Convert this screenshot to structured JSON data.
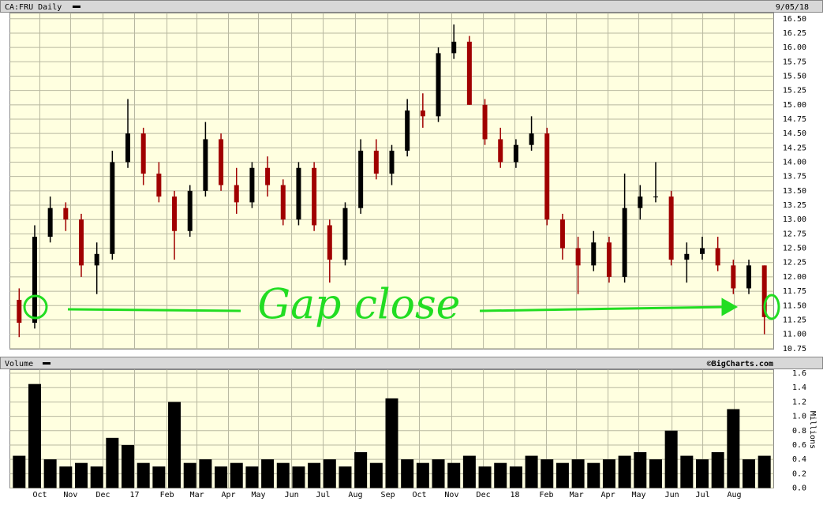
{
  "chart_data": [
    {
      "type": "candlestick",
      "title": "CA:FRU Daily",
      "date": "9/05/18",
      "annotation": "Gap close",
      "up_color": "#000000",
      "down_color": "#a00000",
      "xlim": [
        -0.6,
        48.6
      ],
      "xticks": [
        {
          "value": 1.33,
          "label": "Oct"
        },
        {
          "value": 3.31,
          "label": "Nov"
        },
        {
          "value": 5.4,
          "label": "Dec"
        },
        {
          "value": 7.43,
          "label": "17"
        },
        {
          "value": 9.52,
          "label": "Feb"
        },
        {
          "value": 11.45,
          "label": "Mar"
        },
        {
          "value": 13.48,
          "label": "Apr"
        },
        {
          "value": 15.41,
          "label": "May"
        },
        {
          "value": 17.55,
          "label": "Jun"
        },
        {
          "value": 19.58,
          "label": "Jul"
        },
        {
          "value": 21.66,
          "label": "Aug"
        },
        {
          "value": 23.75,
          "label": "Sep"
        },
        {
          "value": 25.78,
          "label": "Oct"
        },
        {
          "value": 27.86,
          "label": "Nov"
        },
        {
          "value": 29.9,
          "label": "Dec"
        },
        {
          "value": 31.93,
          "label": "18"
        },
        {
          "value": 33.96,
          "label": "Feb"
        },
        {
          "value": 35.9,
          "label": "Mar"
        },
        {
          "value": 37.93,
          "label": "Apr"
        },
        {
          "value": 39.91,
          "label": "May"
        },
        {
          "value": 42.05,
          "label": "Jun"
        },
        {
          "value": 44.03,
          "label": "Jul"
        },
        {
          "value": 46.06,
          "label": "Aug"
        }
      ],
      "ylim": [
        10.74,
        16.6
      ],
      "yticks": [
        {
          "value": 10.75,
          "label": "10.75"
        },
        {
          "value": 11,
          "label": "11.00"
        },
        {
          "value": 11.25,
          "label": "11.25"
        },
        {
          "value": 11.5,
          "label": "11.50"
        },
        {
          "value": 11.75,
          "label": "11.75"
        },
        {
          "value": 12,
          "label": "12.00"
        },
        {
          "value": 12.25,
          "label": "12.25"
        },
        {
          "value": 12.5,
          "label": "12.50"
        },
        {
          "value": 12.75,
          "label": "12.75"
        },
        {
          "value": 13,
          "label": "13.00"
        },
        {
          "value": 13.25,
          "label": "13.25"
        },
        {
          "value": 13.5,
          "label": "13.50"
        },
        {
          "value": 13.75,
          "label": "13.75"
        },
        {
          "value": 14,
          "label": "14.00"
        },
        {
          "value": 14.25,
          "label": "14.25"
        },
        {
          "value": 14.5,
          "label": "14.50"
        },
        {
          "value": 14.75,
          "label": "14.75"
        },
        {
          "value": 15,
          "label": "15.00"
        },
        {
          "value": 15.25,
          "label": "15.25"
        },
        {
          "value": 15.5,
          "label": "15.50"
        },
        {
          "value": 15.75,
          "label": "15.75"
        },
        {
          "value": 16,
          "label": "16.00"
        },
        {
          "value": 16.25,
          "label": "16.25"
        },
        {
          "value": 16.5,
          "label": "16.50"
        }
      ],
      "grid": true,
      "open": [
        11.6,
        11.2,
        12.7,
        13.2,
        13.0,
        12.2,
        12.4,
        14.0,
        14.5,
        13.8,
        13.4,
        12.8,
        13.5,
        14.4,
        13.6,
        13.3,
        13.9,
        13.6,
        13.0,
        13.9,
        12.9,
        12.3,
        13.2,
        14.2,
        13.8,
        14.2,
        14.9,
        14.8,
        15.9,
        16.1,
        15.0,
        14.4,
        14.0,
        14.3,
        14.5,
        13.0,
        12.5,
        12.2,
        12.6,
        12.0,
        13.2,
        13.4,
        13.4,
        12.3,
        12.4,
        12.5,
        12.2,
        11.8,
        12.2
      ],
      "high": [
        11.8,
        12.9,
        13.4,
        13.3,
        13.1,
        12.6,
        14.2,
        15.1,
        14.6,
        14.0,
        13.5,
        13.6,
        14.7,
        14.5,
        13.9,
        14.0,
        14.1,
        13.7,
        14.0,
        14.0,
        13.0,
        13.3,
        14.4,
        14.4,
        14.3,
        15.1,
        15.2,
        16.0,
        16.4,
        16.2,
        15.1,
        14.6,
        14.4,
        14.8,
        14.6,
        13.1,
        12.7,
        12.8,
        12.7,
        13.8,
        13.6,
        14.0,
        13.5,
        12.6,
        12.7,
        12.7,
        12.3,
        12.3,
        12.2
      ],
      "low": [
        10.95,
        11.1,
        12.6,
        12.8,
        12.0,
        11.7,
        12.3,
        13.9,
        13.6,
        13.3,
        12.3,
        12.7,
        13.4,
        13.5,
        13.1,
        13.2,
        13.4,
        12.9,
        12.9,
        12.8,
        11.9,
        12.2,
        13.1,
        13.7,
        13.6,
        14.1,
        14.6,
        14.7,
        15.8,
        15.0,
        14.3,
        13.9,
        13.9,
        14.2,
        12.9,
        12.3,
        11.7,
        12.1,
        11.9,
        11.9,
        13.0,
        13.3,
        12.2,
        11.9,
        12.3,
        12.1,
        11.7,
        11.7,
        11.0
      ],
      "close": [
        11.2,
        12.7,
        13.2,
        13.0,
        12.2,
        12.4,
        14.0,
        14.5,
        13.8,
        13.4,
        12.8,
        13.5,
        14.4,
        13.6,
        13.3,
        13.9,
        13.6,
        13.0,
        13.9,
        12.9,
        12.3,
        13.2,
        14.2,
        13.8,
        14.2,
        14.9,
        14.8,
        15.9,
        16.1,
        15.0,
        14.4,
        14.0,
        14.3,
        14.5,
        13.0,
        12.5,
        12.2,
        12.6,
        12.0,
        13.2,
        13.4,
        13.4,
        12.3,
        12.4,
        12.5,
        12.2,
        11.8,
        12.2,
        11.3
      ]
    },
    {
      "type": "bar",
      "title": "Volume",
      "credit": "©BigCharts.com",
      "unit": "Millions",
      "color": "#000000",
      "xlim": [
        -0.6,
        48.6
      ],
      "xticks": [
        {
          "value": 1.33,
          "label": "Oct"
        },
        {
          "value": 3.31,
          "label": "Nov"
        },
        {
          "value": 5.4,
          "label": "Dec"
        },
        {
          "value": 7.43,
          "label": "17"
        },
        {
          "value": 9.52,
          "label": "Feb"
        },
        {
          "value": 11.45,
          "label": "Mar"
        },
        {
          "value": 13.48,
          "label": "Apr"
        },
        {
          "value": 15.41,
          "label": "May"
        },
        {
          "value": 17.55,
          "label": "Jun"
        },
        {
          "value": 19.58,
          "label": "Jul"
        },
        {
          "value": 21.66,
          "label": "Aug"
        },
        {
          "value": 23.75,
          "label": "Sep"
        },
        {
          "value": 25.78,
          "label": "Oct"
        },
        {
          "value": 27.86,
          "label": "Nov"
        },
        {
          "value": 29.9,
          "label": "Dec"
        },
        {
          "value": 31.93,
          "label": "18"
        },
        {
          "value": 33.96,
          "label": "Feb"
        },
        {
          "value": 35.9,
          "label": "Mar"
        },
        {
          "value": 37.93,
          "label": "Apr"
        },
        {
          "value": 39.91,
          "label": "May"
        },
        {
          "value": 42.05,
          "label": "Jun"
        },
        {
          "value": 44.03,
          "label": "Jul"
        },
        {
          "value": 46.06,
          "label": "Aug"
        }
      ],
      "ylim": [
        0,
        1.65
      ],
      "yticks": [
        {
          "value": 0,
          "label": "0.0"
        },
        {
          "value": 0.2,
          "label": "0.2"
        },
        {
          "value": 0.4,
          "label": "0.4"
        },
        {
          "value": 0.6,
          "label": "0.6"
        },
        {
          "value": 0.8,
          "label": "0.8"
        },
        {
          "value": 1,
          "label": "1.0"
        },
        {
          "value": 1.2,
          "label": "1.2"
        },
        {
          "value": 1.4,
          "label": "1.4"
        },
        {
          "value": 1.6,
          "label": "1.6"
        }
      ],
      "grid": true,
      "values": [
        0.45,
        1.45,
        0.4,
        0.3,
        0.35,
        0.3,
        0.7,
        0.6,
        0.35,
        0.3,
        1.2,
        0.35,
        0.4,
        0.3,
        0.35,
        0.3,
        0.4,
        0.35,
        0.3,
        0.35,
        0.4,
        0.3,
        0.5,
        0.35,
        1.25,
        0.4,
        0.35,
        0.4,
        0.35,
        0.45,
        0.3,
        0.35,
        0.3,
        0.45,
        0.4,
        0.35,
        0.4,
        0.35,
        0.4,
        0.45,
        0.5,
        0.4,
        0.8,
        0.45,
        0.4,
        0.5,
        1.1,
        0.4,
        0.45
      ]
    }
  ]
}
